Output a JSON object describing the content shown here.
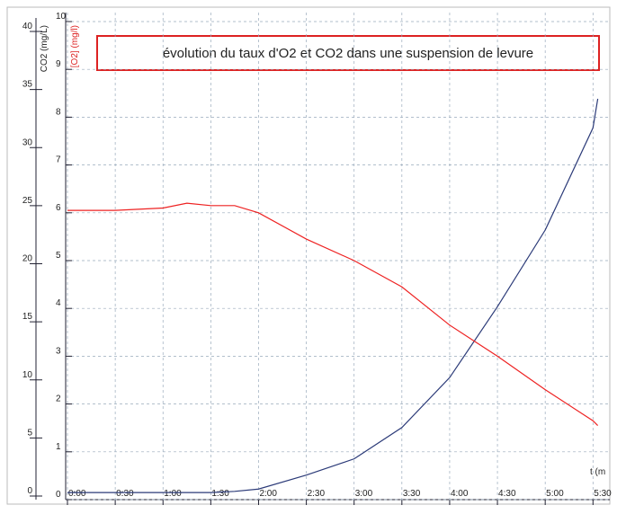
{
  "chart_data": {
    "type": "line",
    "title": "évolution du taux d'O2 et CO2 dans une suspension de levure",
    "ylabel": "CO2 (mg/L)",
    "y2label": "[O2] (mg/l)",
    "xlabel": "t (m",
    "x": [
      0,
      30,
      60,
      75,
      90,
      105,
      120,
      150,
      180,
      210,
      240,
      270,
      300,
      330,
      333
    ],
    "xlim": [
      0,
      340
    ],
    "xticks": [
      {
        "value": 0,
        "label": "0:00"
      },
      {
        "value": 30,
        "label": "0:30"
      },
      {
        "value": 60,
        "label": "1:00"
      },
      {
        "value": 90,
        "label": "1:30"
      },
      {
        "value": 120,
        "label": "2:00"
      },
      {
        "value": 150,
        "label": "2:30"
      },
      {
        "value": 180,
        "label": "3:00"
      },
      {
        "value": 210,
        "label": "3:30"
      },
      {
        "value": 240,
        "label": "4:00"
      },
      {
        "value": 270,
        "label": "4:30"
      },
      {
        "value": 300,
        "label": "5:00"
      },
      {
        "value": 330,
        "label": "5:30"
      }
    ],
    "ylim": [
      0,
      40
    ],
    "yticks": [
      0,
      5,
      10,
      15,
      20,
      25,
      30,
      35,
      40
    ],
    "y2lim": [
      0,
      10
    ],
    "y2ticks": [
      0,
      1,
      2,
      3,
      4,
      5,
      6,
      7,
      8,
      9,
      10
    ],
    "grid": true,
    "series": [
      {
        "name": "CO2",
        "color": "#2b3a78",
        "values": [
          0.3,
          0.3,
          0.3,
          0.3,
          0.3,
          0.4,
          0.6,
          1.8,
          3.2,
          5.9,
          10.2,
          16.3,
          22.9,
          31.7,
          34.2
        ]
      },
      {
        "name": "O2",
        "color": "#ee2222",
        "axis": "y2",
        "values": [
          6.05,
          6.05,
          6.1,
          6.2,
          6.15,
          6.15,
          6.0,
          5.45,
          5.0,
          4.45,
          3.65,
          3.0,
          2.3,
          1.65,
          1.55
        ]
      }
    ]
  }
}
